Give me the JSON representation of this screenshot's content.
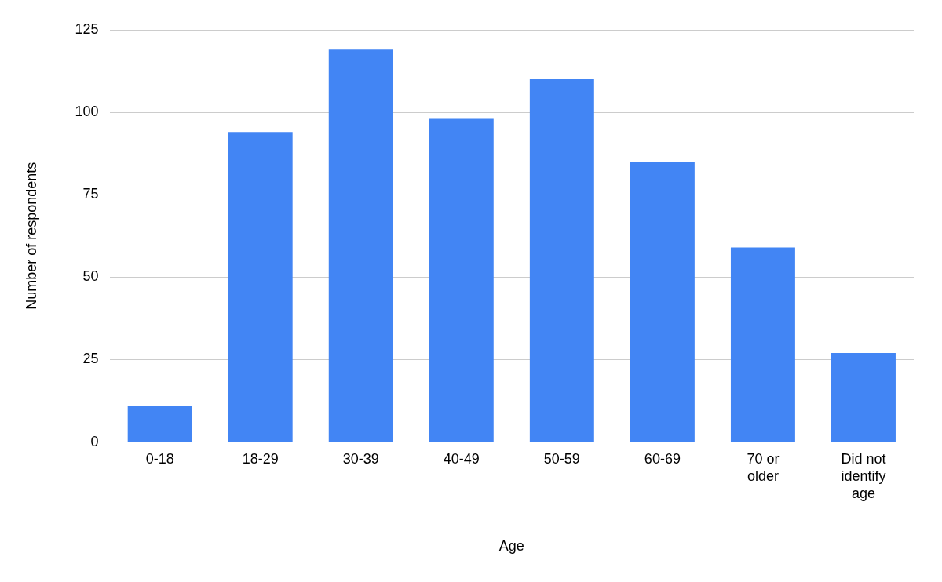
{
  "chart_data": {
    "type": "bar",
    "x_label": "Age",
    "y_label": "Number of respondents",
    "categories": [
      "0-18",
      "18-29",
      "30-39",
      "40-49",
      "50-59",
      "60-69",
      "70 or older",
      "Did not identify age"
    ],
    "values": [
      11,
      94,
      119,
      98,
      110,
      85,
      59,
      27
    ],
    "color": "#4285f4",
    "ylim": [
      0,
      125
    ],
    "yticks": [
      0,
      25,
      50,
      75,
      100,
      125
    ],
    "grid": true
  }
}
